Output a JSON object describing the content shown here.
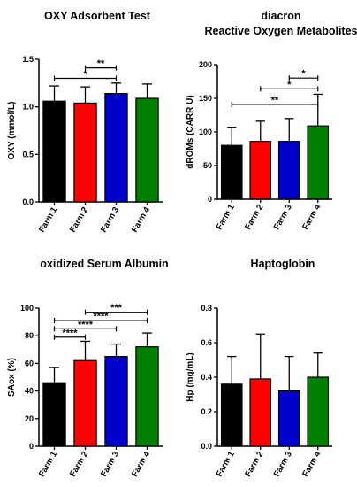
{
  "palette": {
    "farm_1": "#000000",
    "farm_2": "#ff0000",
    "farm_3": "#0000cc",
    "farm_4": "#008000",
    "axis": "#000000"
  },
  "chart_data": [
    {
      "type": "bar",
      "title": [
        "OXY Adsorbent Test"
      ],
      "ylabel": "OXY (mmol/L)",
      "xlabel": "",
      "categories": [
        "Farm 1",
        "Farm 2",
        "Farm 3",
        "Farm 4"
      ],
      "values": [
        1.06,
        1.04,
        1.14,
        1.09
      ],
      "error_upper": [
        1.22,
        1.21,
        1.25,
        1.24
      ],
      "ylim": [
        0,
        1.5
      ],
      "yticks": [
        0.0,
        0.5,
        1.0,
        1.5
      ],
      "ytick_labels": [
        "0.0",
        "0.5",
        "1.0",
        "1.5"
      ],
      "error_bars": "one-sided (upper)",
      "significance": [
        {
          "from": "Farm 2",
          "to": "Farm 3",
          "label": "**",
          "level": 1.41
        },
        {
          "from": "Farm 1",
          "to": "Farm 3",
          "label": "*",
          "level": 1.3
        }
      ]
    },
    {
      "type": "bar",
      "title": [
        "diacron",
        "Reactive Oxygen Metabolites"
      ],
      "ylabel": "dROMs (CARR U)",
      "xlabel": "",
      "categories": [
        "Farm 1",
        "Farm 2",
        "Farm 3",
        "Farm 4"
      ],
      "values": [
        80,
        86,
        86,
        109
      ],
      "error_upper": [
        107,
        116,
        120,
        156
      ],
      "ylim": [
        0,
        200
      ],
      "yticks": [
        0,
        50,
        100,
        150,
        200
      ],
      "ytick_labels": [
        "0",
        "50",
        "100",
        "150",
        "200"
      ],
      "error_bars": "one-sided (upper)",
      "significance": [
        {
          "from": "Farm 3",
          "to": "Farm 4",
          "label": "*",
          "level": 180
        },
        {
          "from": "Farm 2",
          "to": "Farm 4",
          "label": "*",
          "level": 164
        },
        {
          "from": "Farm 1",
          "to": "Farm 4",
          "label": "**",
          "level": 141
        }
      ]
    },
    {
      "type": "bar",
      "title": [
        "oxidized Serum Albumin"
      ],
      "ylabel": "SAox (%)",
      "xlabel": "",
      "categories": [
        "Farm 1",
        "Farm 2",
        "Farm 3",
        "Farm 4"
      ],
      "values": [
        46,
        62,
        65,
        72
      ],
      "error_upper": [
        57,
        76,
        74,
        82
      ],
      "ylim": [
        0,
        100
      ],
      "yticks": [
        0,
        20,
        40,
        60,
        80,
        100
      ],
      "ytick_labels": [
        "0",
        "20",
        "40",
        "60",
        "80",
        "100"
      ],
      "error_bars": "one-sided (upper)",
      "significance": [
        {
          "from": "Farm 2",
          "to": "Farm 4",
          "label": "***",
          "level": 97
        },
        {
          "from": "Farm 1",
          "to": "Farm 4",
          "label": "****",
          "level": 91
        },
        {
          "from": "Farm 1",
          "to": "Farm 3",
          "label": "****",
          "level": 85
        },
        {
          "from": "Farm 1",
          "to": "Farm 2",
          "label": "****",
          "level": 79
        }
      ]
    },
    {
      "type": "bar",
      "title": [
        "Haptoglobin"
      ],
      "ylabel": "Hp (mg/mL)",
      "xlabel": "",
      "categories": [
        "Farm 1",
        "Farm 2",
        "Farm 3",
        "Farm 4"
      ],
      "values": [
        0.36,
        0.39,
        0.32,
        0.4
      ],
      "error_upper": [
        0.52,
        0.65,
        0.52,
        0.54
      ],
      "ylim": [
        0,
        0.8
      ],
      "yticks": [
        0.0,
        0.2,
        0.4,
        0.6,
        0.8
      ],
      "ytick_labels": [
        "0.0",
        "0.2",
        "0.4",
        "0.6",
        "0.8"
      ],
      "error_bars": "one-sided (upper)",
      "significance": []
    }
  ]
}
